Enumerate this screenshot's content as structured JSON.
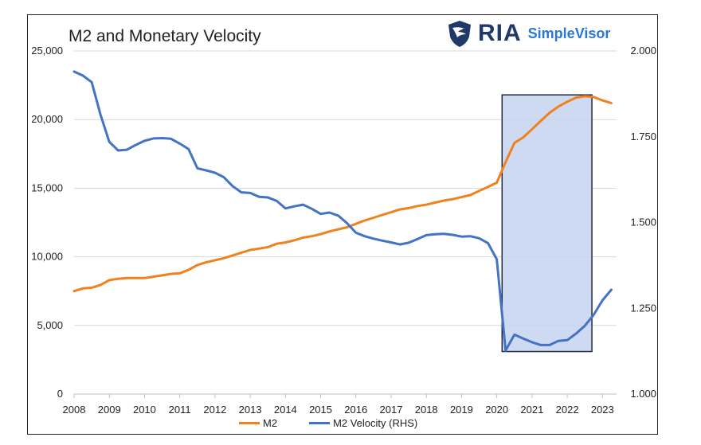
{
  "chart_data": {
    "type": "line",
    "title": "M2 and Monetary Velocity",
    "brand": {
      "logo_text": "RIA",
      "product": "SimpleVisor",
      "logo_icon": "eagle-shield-icon"
    },
    "x_ticks": [
      "2008",
      "2009",
      "2010",
      "2011",
      "2012",
      "2013",
      "2014",
      "2015",
      "2016",
      "2017",
      "2018",
      "2019",
      "2020",
      "2021",
      "2022",
      "2023"
    ],
    "x_range": [
      2008,
      2023.4
    ],
    "y_left": {
      "range": [
        0,
        25000
      ],
      "ticks": [
        0,
        5000,
        10000,
        15000,
        20000,
        25000
      ],
      "tick_labels": [
        "0",
        "5,000",
        "10,000",
        "15,000",
        "20,000",
        "25,000"
      ]
    },
    "y_right": {
      "range": [
        1.0,
        2.0
      ],
      "ticks": [
        1.0,
        1.25,
        1.5,
        1.75,
        2.0
      ],
      "tick_labels": [
        "1.000",
        "1.250",
        "1.500",
        "1.750",
        "2.000"
      ]
    },
    "grid": "horizontal",
    "legend_position": "bottom",
    "highlight": {
      "x_start": 2020.15,
      "x_end": 2022.7,
      "y_top": 21800,
      "y_bottom": 3100,
      "fill": "#c5d3f0",
      "stroke": "#1f2a44"
    },
    "series": [
      {
        "name": "M2",
        "axis": "left",
        "color": "#f0811f",
        "x": [
          2008.0,
          2008.25,
          2008.5,
          2008.75,
          2009.0,
          2009.25,
          2009.5,
          2009.75,
          2010.0,
          2010.25,
          2010.5,
          2010.75,
          2011.0,
          2011.25,
          2011.5,
          2011.75,
          2012.0,
          2012.25,
          2012.5,
          2012.75,
          2013.0,
          2013.25,
          2013.5,
          2013.75,
          2014.0,
          2014.25,
          2014.5,
          2014.75,
          2015.0,
          2015.25,
          2015.5,
          2015.75,
          2016.0,
          2016.25,
          2016.5,
          2016.75,
          2017.0,
          2017.25,
          2017.5,
          2017.75,
          2018.0,
          2018.25,
          2018.5,
          2018.75,
          2019.0,
          2019.25,
          2019.5,
          2019.75,
          2020.0,
          2020.25,
          2020.5,
          2020.75,
          2021.0,
          2021.25,
          2021.5,
          2021.75,
          2022.0,
          2022.25,
          2022.5,
          2022.75,
          2023.0,
          2023.25
        ],
        "values": [
          7500,
          7700,
          7750,
          7950,
          8300,
          8400,
          8450,
          8450,
          8450,
          8550,
          8650,
          8750,
          8800,
          9050,
          9400,
          9600,
          9750,
          9900,
          10100,
          10300,
          10500,
          10600,
          10700,
          10950,
          11050,
          11200,
          11400,
          11500,
          11650,
          11850,
          12000,
          12150,
          12400,
          12650,
          12850,
          13050,
          13250,
          13450,
          13550,
          13700,
          13800,
          13950,
          14100,
          14200,
          14350,
          14500,
          14800,
          15100,
          15400,
          16900,
          18300,
          18700,
          19300,
          19900,
          20500,
          20950,
          21300,
          21600,
          21700,
          21650,
          21400,
          21200
        ]
      },
      {
        "name": "M2 Velocity (RHS)",
        "axis": "right",
        "color": "#4472c4",
        "x": [
          2008.0,
          2008.25,
          2008.5,
          2008.75,
          2009.0,
          2009.25,
          2009.5,
          2009.75,
          2010.0,
          2010.25,
          2010.5,
          2010.75,
          2011.0,
          2011.25,
          2011.5,
          2011.75,
          2012.0,
          2012.25,
          2012.5,
          2012.75,
          2013.0,
          2013.25,
          2013.5,
          2013.75,
          2014.0,
          2014.25,
          2014.5,
          2014.75,
          2015.0,
          2015.25,
          2015.5,
          2015.75,
          2016.0,
          2016.25,
          2016.5,
          2016.75,
          2017.0,
          2017.25,
          2017.5,
          2017.75,
          2018.0,
          2018.25,
          2018.5,
          2018.75,
          2019.0,
          2019.25,
          2019.5,
          2019.75,
          2020.0,
          2020.25,
          2020.5,
          2020.75,
          2021.0,
          2021.25,
          2021.5,
          2021.75,
          2022.0,
          2022.25,
          2022.5,
          2022.75,
          2023.0,
          2023.25
        ],
        "values": [
          1.94,
          1.928,
          1.909,
          1.814,
          1.735,
          1.71,
          1.712,
          1.726,
          1.738,
          1.745,
          1.746,
          1.744,
          1.73,
          1.714,
          1.658,
          1.652,
          1.645,
          1.632,
          1.606,
          1.588,
          1.586,
          1.575,
          1.573,
          1.563,
          1.541,
          1.547,
          1.552,
          1.54,
          1.525,
          1.529,
          1.52,
          1.498,
          1.47,
          1.46,
          1.453,
          1.447,
          1.442,
          1.436,
          1.441,
          1.452,
          1.463,
          1.466,
          1.467,
          1.464,
          1.459,
          1.46,
          1.454,
          1.44,
          1.393,
          1.127,
          1.173,
          1.162,
          1.151,
          1.143,
          1.143,
          1.155,
          1.157,
          1.176,
          1.199,
          1.231,
          1.273,
          1.304
        ]
      }
    ]
  }
}
